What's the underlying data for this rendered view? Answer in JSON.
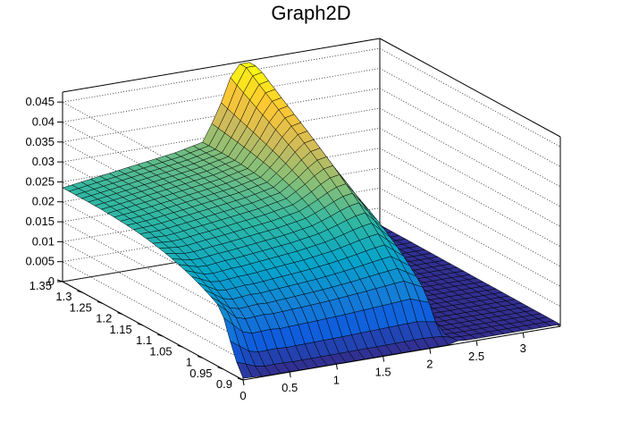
{
  "chart_data": {
    "type": "surface",
    "title": "Graph2D",
    "xlabel": "",
    "ylabel": "",
    "zlabel": "",
    "x_range": [
      0,
      3.4
    ],
    "y_range": [
      0.9,
      1.35
    ],
    "z_range": [
      0,
      0.0475
    ],
    "x_ticks": [
      "0",
      "0.5",
      "1",
      "1.5",
      "2",
      "2.5",
      "3"
    ],
    "y_ticks": [
      "0.9",
      "0.95",
      "1",
      "1.05",
      "1.1",
      "1.15",
      "1.2",
      "1.25",
      "1.3",
      "1.35"
    ],
    "z_ticks": [
      "0",
      "0.005",
      "0.01",
      "0.015",
      "0.02",
      "0.025",
      "0.03",
      "0.035",
      "0.04",
      "0.045"
    ],
    "grid": true,
    "colormap": [
      "#352a87",
      "#0f5cdd",
      "#1481d6",
      "#06a4ca",
      "#2eb7a4",
      "#87bf77",
      "#d1bb59",
      "#fec832",
      "#f9fb0e"
    ],
    "surface_y": [
      0.9,
      1.35
    ],
    "surface_z_at_x_start": 0.0235,
    "surface_z_at_x_end": 0.0005,
    "peak_x": 2.0,
    "peak_z": 0.047
  },
  "window": {
    "title": "Graph2D"
  }
}
